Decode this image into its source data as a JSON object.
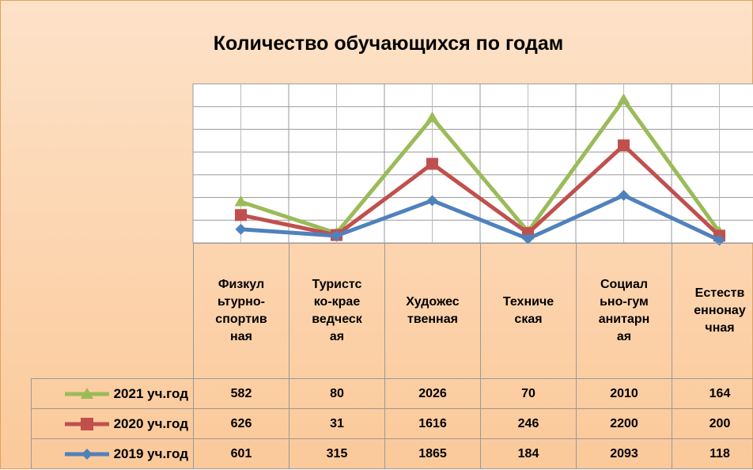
{
  "chart_data": {
    "type": "line",
    "stacked": true,
    "title": "Количество обучающихся по годам",
    "categories": [
      "Физкультурно-спортивная",
      "Туристско-краеведческая",
      "Художественная",
      "Техническая",
      "Социально-гуманитарная",
      "Естественнонаучная"
    ],
    "series": [
      {
        "name": "2021 уч.год",
        "color": "#9bbb59",
        "marker": "triangle",
        "values": [
          582,
          80,
          2026,
          70,
          2010,
          164
        ]
      },
      {
        "name": "2020 уч.год",
        "color": "#c0504d",
        "marker": "square",
        "values": [
          626,
          31,
          1616,
          246,
          2200,
          200
        ]
      },
      {
        "name": "2019 уч.год",
        "color": "#4f81bd",
        "marker": "diamond",
        "values": [
          601,
          315,
          1865,
          184,
          2093,
          118
        ]
      }
    ],
    "ylim": [
      0,
      7000
    ],
    "yticks": [
      0,
      1000,
      2000,
      3000,
      4000,
      5000,
      6000,
      7000
    ],
    "grid": true
  }
}
